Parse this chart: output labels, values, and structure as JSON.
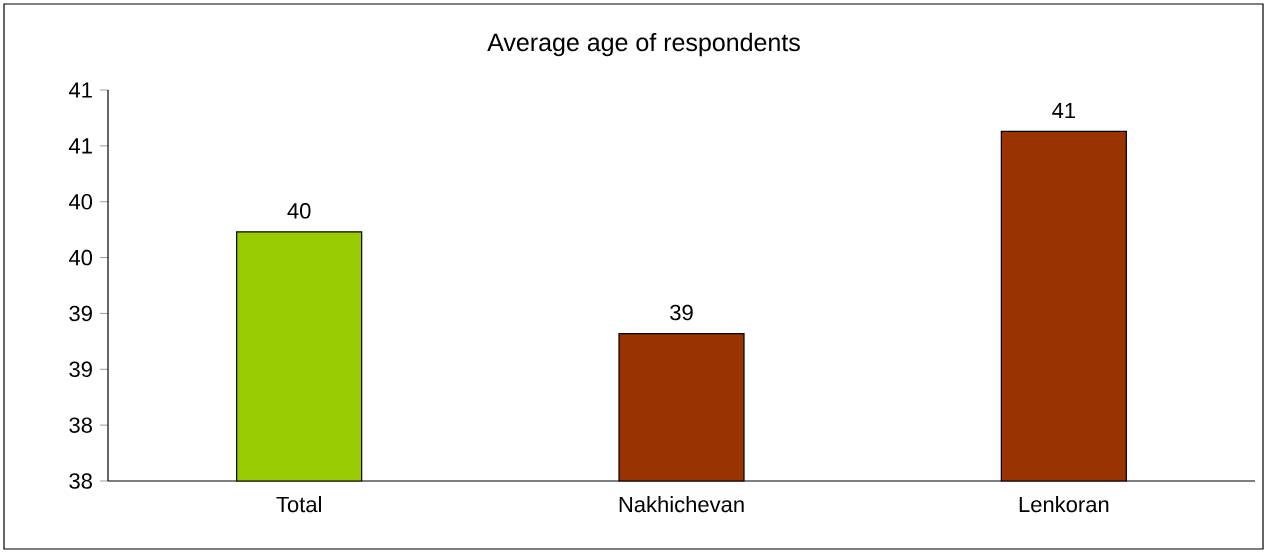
{
  "chart_data": {
    "type": "bar",
    "title": "Average age of respondents",
    "categories": [
      "Total",
      "Nakhichevan",
      "Lenkoran"
    ],
    "values": [
      40.03,
      39.12,
      40.93
    ],
    "colors": [
      "#99cc00",
      "#993300",
      "#993300"
    ],
    "value_labels": [
      "40",
      "39",
      "41"
    ],
    "ylim": [
      37.8,
      41.3
    ],
    "yticks": [
      {
        "value": 37.8,
        "label": "38"
      },
      {
        "value": 38.3,
        "label": "38"
      },
      {
        "value": 38.8,
        "label": "39"
      },
      {
        "value": 39.3,
        "label": "39"
      },
      {
        "value": 39.8,
        "label": "40"
      },
      {
        "value": 40.3,
        "label": "40"
      },
      {
        "value": 40.8,
        "label": "41"
      },
      {
        "value": 41.3,
        "label": "41"
      }
    ]
  }
}
